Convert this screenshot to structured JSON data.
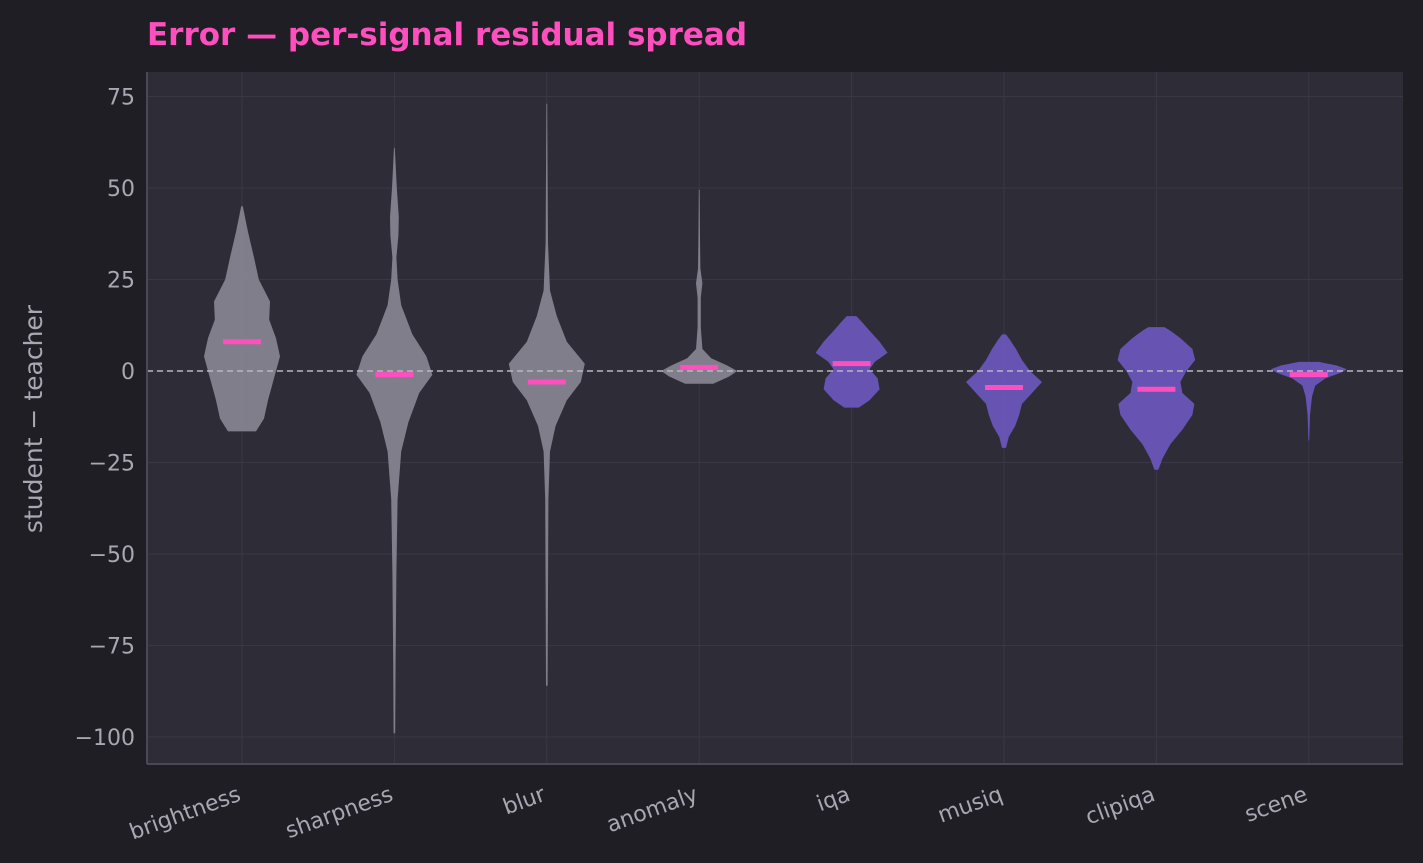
{
  "chart_data": {
    "type": "violin",
    "title": "Error — per-signal residual spread",
    "xlabel": "",
    "ylabel": "student − teacher",
    "ylim": [
      -107,
      81
    ],
    "yticks": [
      75,
      50,
      25,
      0,
      -25,
      -50,
      -75,
      -100
    ],
    "ytick_labels": [
      "75",
      "50",
      "25",
      "0",
      "−25",
      "−50",
      "−75",
      "−100"
    ],
    "grid": true,
    "reference_line": 0,
    "colors": {
      "background": "#1f1e24",
      "plot_area": "#2e2c37",
      "grid": "#3a3844",
      "axis": "#4a4856",
      "violin_gray": "#86838f",
      "violin_purple": "#6a55b8",
      "median": "#ff4fbf",
      "reference": "#b9b6c2",
      "title": "#ff4fbf",
      "text": "#a9a7b3"
    },
    "categories": [
      "brightness",
      "sharpness",
      "blur",
      "anomaly",
      "iqa",
      "musiq",
      "clipiqa",
      "scene"
    ],
    "series": [
      {
        "category": "brightness",
        "color": "gray",
        "min": -16.5,
        "max": 45,
        "median": 8,
        "profile": [
          [
            -16.5,
            0.35
          ],
          [
            -13,
            0.55
          ],
          [
            -8,
            0.65
          ],
          [
            -2,
            0.8
          ],
          [
            4,
            0.95
          ],
          [
            9,
            0.85
          ],
          [
            14,
            0.68
          ],
          [
            19,
            0.7
          ],
          [
            25,
            0.42
          ],
          [
            31,
            0.3
          ],
          [
            38,
            0.15
          ],
          [
            45,
            0.02
          ]
        ]
      },
      {
        "category": "sharpness",
        "color": "gray",
        "min": -99,
        "max": 61,
        "median": -1,
        "profile": [
          [
            -99,
            0.02
          ],
          [
            -80,
            0.03
          ],
          [
            -55,
            0.05
          ],
          [
            -35,
            0.08
          ],
          [
            -22,
            0.17
          ],
          [
            -14,
            0.35
          ],
          [
            -6,
            0.62
          ],
          [
            -1,
            0.95
          ],
          [
            4,
            0.8
          ],
          [
            10,
            0.45
          ],
          [
            18,
            0.17
          ],
          [
            25,
            0.08
          ],
          [
            31,
            0.05
          ],
          [
            37,
            0.1
          ],
          [
            42,
            0.11
          ],
          [
            50,
            0.06
          ],
          [
            61,
            0.01
          ]
        ]
      },
      {
        "category": "blur",
        "color": "gray",
        "min": -86,
        "max": 73,
        "median": -3,
        "profile": [
          [
            -86,
            0.02
          ],
          [
            -60,
            0.03
          ],
          [
            -35,
            0.04
          ],
          [
            -22,
            0.08
          ],
          [
            -15,
            0.22
          ],
          [
            -8,
            0.5
          ],
          [
            -3,
            0.85
          ],
          [
            2,
            0.95
          ],
          [
            8,
            0.5
          ],
          [
            15,
            0.25
          ],
          [
            22,
            0.08
          ],
          [
            35,
            0.03
          ],
          [
            73,
            0.01
          ]
        ]
      },
      {
        "category": "anomaly",
        "color": "gray",
        "min": -3.5,
        "max": 49.5,
        "median": 1,
        "profile": [
          [
            -3.5,
            0.35
          ],
          [
            -1.5,
            0.75
          ],
          [
            0,
            0.95
          ],
          [
            1.5,
            0.7
          ],
          [
            3.5,
            0.3
          ],
          [
            6,
            0.08
          ],
          [
            12,
            0.04
          ],
          [
            20,
            0.04
          ],
          [
            24,
            0.08
          ],
          [
            28,
            0.03
          ],
          [
            36,
            0.02
          ],
          [
            49.5,
            0.01
          ]
        ]
      },
      {
        "category": "iqa",
        "color": "purple",
        "min": -10,
        "max": 15,
        "median": 2,
        "profile": [
          [
            -10,
            0.18
          ],
          [
            -8,
            0.45
          ],
          [
            -5,
            0.7
          ],
          [
            -2,
            0.65
          ],
          [
            0.5,
            0.45
          ],
          [
            2.5,
            0.58
          ],
          [
            5,
            0.9
          ],
          [
            8,
            0.7
          ],
          [
            11,
            0.45
          ],
          [
            13.5,
            0.25
          ],
          [
            15,
            0.12
          ]
        ]
      },
      {
        "category": "musiq",
        "color": "purple",
        "min": -21,
        "max": 10,
        "median": -4.5,
        "profile": [
          [
            -21,
            0.05
          ],
          [
            -18,
            0.12
          ],
          [
            -15,
            0.28
          ],
          [
            -12,
            0.38
          ],
          [
            -9,
            0.45
          ],
          [
            -6,
            0.7
          ],
          [
            -3,
            0.95
          ],
          [
            0,
            0.65
          ],
          [
            3,
            0.45
          ],
          [
            6,
            0.3
          ],
          [
            8.5,
            0.15
          ],
          [
            10,
            0.05
          ]
        ]
      },
      {
        "category": "clipiqa",
        "color": "purple",
        "min": -27,
        "max": 12,
        "median": -5,
        "profile": [
          [
            -27,
            0.05
          ],
          [
            -24,
            0.15
          ],
          [
            -20,
            0.35
          ],
          [
            -16,
            0.65
          ],
          [
            -12,
            0.9
          ],
          [
            -9,
            0.95
          ],
          [
            -6,
            0.65
          ],
          [
            -3,
            0.6
          ],
          [
            0,
            0.75
          ],
          [
            3,
            0.97
          ],
          [
            6,
            0.9
          ],
          [
            9,
            0.6
          ],
          [
            11,
            0.35
          ],
          [
            12,
            0.2
          ]
        ]
      },
      {
        "category": "scene",
        "color": "purple",
        "min": -19,
        "max": 2.5,
        "median": -1,
        "profile": [
          [
            -19,
            0.01
          ],
          [
            -12,
            0.03
          ],
          [
            -7,
            0.08
          ],
          [
            -4,
            0.16
          ],
          [
            -2,
            0.42
          ],
          [
            -0.5,
            0.8
          ],
          [
            0.5,
            0.95
          ],
          [
            1.5,
            0.7
          ],
          [
            2.5,
            0.25
          ]
        ]
      }
    ]
  }
}
